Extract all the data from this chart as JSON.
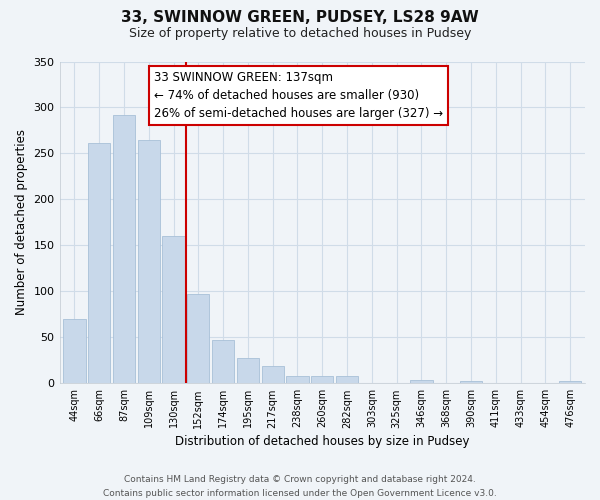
{
  "title": "33, SWINNOW GREEN, PUDSEY, LS28 9AW",
  "subtitle": "Size of property relative to detached houses in Pudsey",
  "xlabel": "Distribution of detached houses by size in Pudsey",
  "ylabel": "Number of detached properties",
  "bar_labels": [
    "44sqm",
    "66sqm",
    "87sqm",
    "109sqm",
    "130sqm",
    "152sqm",
    "174sqm",
    "195sqm",
    "217sqm",
    "238sqm",
    "260sqm",
    "282sqm",
    "303sqm",
    "325sqm",
    "346sqm",
    "368sqm",
    "390sqm",
    "411sqm",
    "433sqm",
    "454sqm",
    "476sqm"
  ],
  "bar_values": [
    70,
    261,
    292,
    265,
    160,
    97,
    47,
    27,
    19,
    8,
    8,
    8,
    0,
    0,
    4,
    0,
    3,
    0,
    0,
    0,
    3
  ],
  "bar_color": "#c8d8ea",
  "bar_edge_color": "#a8c0d8",
  "vline_x": 4.5,
  "vline_color": "#cc0000",
  "ylim": [
    0,
    350
  ],
  "yticks": [
    0,
    50,
    100,
    150,
    200,
    250,
    300,
    350
  ],
  "annotation_text": "33 SWINNOW GREEN: 137sqm\n← 74% of detached houses are smaller (930)\n26% of semi-detached houses are larger (327) →",
  "annotation_box_edge": "#cc0000",
  "footer_line1": "Contains HM Land Registry data © Crown copyright and database right 2024.",
  "footer_line2": "Contains public sector information licensed under the Open Government Licence v3.0.",
  "bg_color": "#f0f4f8",
  "grid_color": "#d0dce8"
}
